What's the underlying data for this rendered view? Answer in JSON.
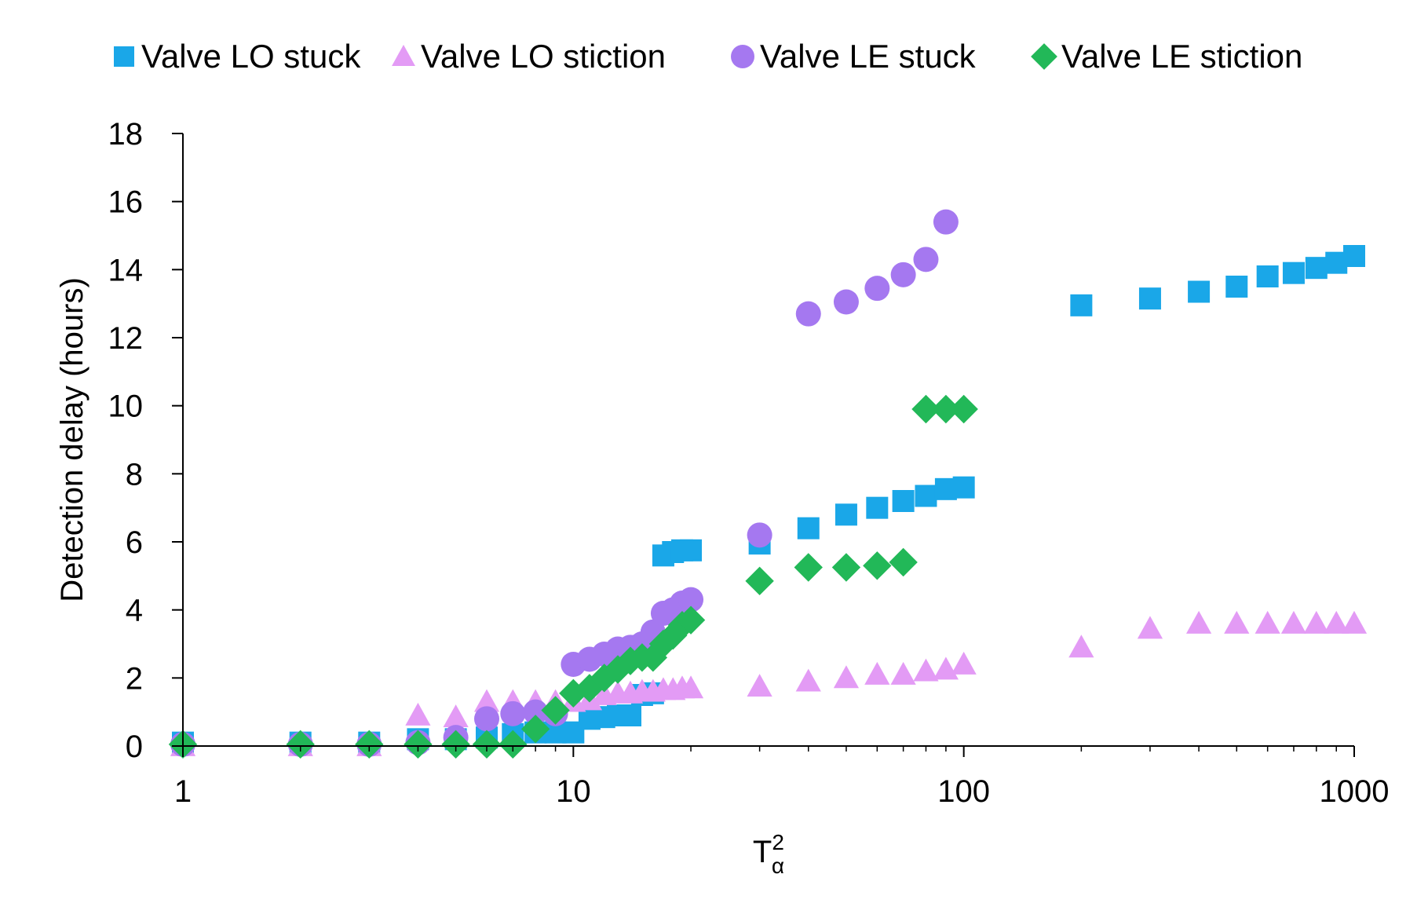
{
  "chart_data": {
    "type": "scatter",
    "title": "",
    "xlabel": "T",
    "xlabel_sup": "2",
    "xlabel_sub": "α",
    "ylabel": "Detection delay (hours)",
    "x_scale": "log",
    "xlim": [
      1,
      1000
    ],
    "ylim": [
      0,
      18
    ],
    "x_ticks": [
      1,
      10,
      100,
      1000
    ],
    "x_tick_labels": [
      "1",
      "10",
      "100",
      "1000"
    ],
    "y_ticks": [
      0,
      2,
      4,
      6,
      8,
      10,
      12,
      14,
      16,
      18
    ],
    "y_tick_labels": [
      "0",
      "2",
      "4",
      "6",
      "8",
      "10",
      "12",
      "14",
      "16",
      "18"
    ],
    "grid": false,
    "legend_position": "top",
    "series": [
      {
        "name": "Valve LO stuck",
        "marker": "square",
        "color": "#1AA7E8",
        "x": [
          1,
          2,
          3,
          4,
          5,
          6,
          7,
          8,
          9,
          10,
          11,
          12,
          13,
          14,
          15,
          16,
          17,
          18,
          19,
          20,
          30,
          40,
          50,
          60,
          70,
          80,
          90,
          100,
          200,
          300,
          400,
          500,
          600,
          700,
          800,
          900,
          1000
        ],
        "y": [
          0.1,
          0.1,
          0.1,
          0.2,
          0.2,
          0.25,
          0.35,
          0.4,
          0.4,
          0.4,
          0.8,
          0.85,
          0.9,
          0.9,
          1.5,
          1.55,
          5.6,
          5.7,
          5.75,
          5.75,
          5.95,
          6.4,
          6.8,
          7.0,
          7.2,
          7.35,
          7.55,
          7.6,
          12.95,
          13.15,
          13.35,
          13.5,
          13.8,
          13.9,
          14.05,
          14.2,
          14.4
        ]
      },
      {
        "name": "Valve LO stiction",
        "marker": "triangle",
        "color": "#E39BF5",
        "x": [
          1,
          2,
          3,
          4,
          5,
          6,
          7,
          8,
          9,
          10,
          11,
          12,
          13,
          14,
          15,
          16,
          17,
          18,
          19,
          20,
          30,
          40,
          50,
          60,
          70,
          80,
          90,
          100,
          200,
          300,
          400,
          500,
          600,
          700,
          800,
          900,
          1000
        ],
        "y": [
          0,
          0,
          0,
          0.9,
          0.85,
          1.3,
          1.3,
          1.3,
          1.3,
          1.3,
          1.35,
          1.5,
          1.55,
          1.55,
          1.6,
          1.6,
          1.65,
          1.65,
          1.7,
          1.7,
          1.75,
          1.9,
          2.0,
          2.1,
          2.1,
          2.2,
          2.25,
          2.4,
          2.9,
          3.45,
          3.6,
          3.6,
          3.6,
          3.6,
          3.6,
          3.6,
          3.6
        ]
      },
      {
        "name": "Valve LE stuck",
        "marker": "circle",
        "color": "#A578F0",
        "x": [
          1,
          2,
          3,
          4,
          5,
          6,
          7,
          8,
          9,
          10,
          11,
          12,
          13,
          14,
          15,
          16,
          17,
          18,
          19,
          20,
          30,
          40,
          50,
          60,
          70,
          80,
          90
        ],
        "y": [
          0.05,
          0.05,
          0.05,
          0.1,
          0.25,
          0.8,
          0.95,
          1.0,
          0.95,
          2.4,
          2.55,
          2.7,
          2.85,
          2.9,
          3.0,
          3.35,
          3.9,
          4.0,
          4.2,
          4.3,
          6.2,
          12.7,
          13.05,
          13.45,
          13.85,
          14.3,
          15.4
        ]
      },
      {
        "name": "Valve LE stiction",
        "marker": "diamond",
        "color": "#22B858",
        "x": [
          1,
          2,
          3,
          4,
          5,
          6,
          7,
          8,
          9,
          10,
          11,
          12,
          13,
          14,
          15,
          16,
          17,
          18,
          19,
          20,
          30,
          40,
          50,
          60,
          70,
          80,
          90,
          100
        ],
        "y": [
          0.05,
          0.05,
          0.05,
          0.05,
          0.05,
          0.05,
          0.05,
          0.5,
          1.05,
          1.55,
          1.7,
          2.0,
          2.25,
          2.5,
          2.6,
          2.6,
          3.0,
          3.25,
          3.55,
          3.7,
          4.85,
          5.25,
          5.25,
          5.3,
          5.4,
          9.9,
          9.9,
          9.9
        ]
      }
    ]
  }
}
